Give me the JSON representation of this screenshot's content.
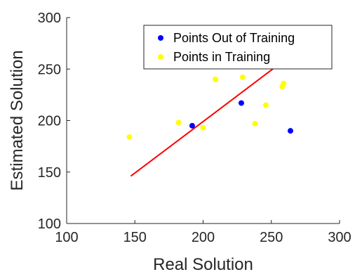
{
  "chart_data": {
    "type": "scatter",
    "title": "",
    "xlabel": "Real Solution",
    "ylabel": "Estimated Solution",
    "xlim": [
      100,
      300
    ],
    "ylim": [
      100,
      300
    ],
    "xticks": [
      100,
      150,
      200,
      250,
      300
    ],
    "yticks": [
      100,
      150,
      200,
      250,
      300
    ],
    "grid": false,
    "legend": {
      "placement": "top-right",
      "entries": [
        {
          "label": "Points Out of Training",
          "color": "#0000ff"
        },
        {
          "label": "Points in Training",
          "color": "#ffff00"
        }
      ]
    },
    "series": [
      {
        "name": "Points Out of Training",
        "color": "#0000ff",
        "points": [
          {
            "x": 192,
            "y": 195
          },
          {
            "x": 228,
            "y": 217
          },
          {
            "x": 264,
            "y": 190
          }
        ]
      },
      {
        "name": "Points in Training",
        "color": "#ffff00",
        "points": [
          {
            "x": 146,
            "y": 184
          },
          {
            "x": 182,
            "y": 198
          },
          {
            "x": 200,
            "y": 193
          },
          {
            "x": 209,
            "y": 240
          },
          {
            "x": 229,
            "y": 242
          },
          {
            "x": 238,
            "y": 197
          },
          {
            "x": 246,
            "y": 215
          },
          {
            "x": 258,
            "y": 233
          },
          {
            "x": 259,
            "y": 236
          }
        ]
      }
    ],
    "fit_line": {
      "color": "#ff0000",
      "points": [
        {
          "x": 147,
          "y": 146
        },
        {
          "x": 255,
          "y": 254
        }
      ]
    }
  }
}
